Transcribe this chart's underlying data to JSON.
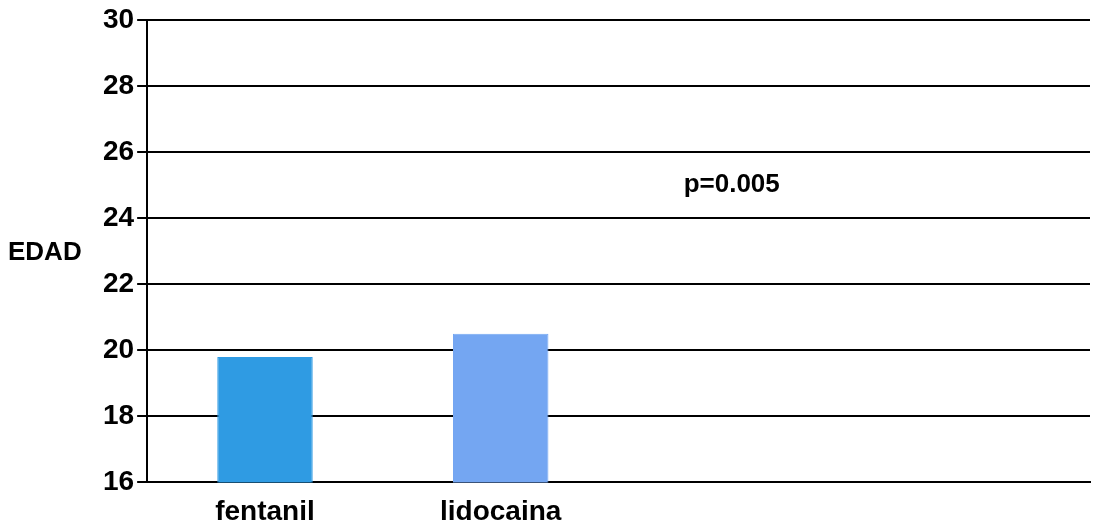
{
  "chart_data": {
    "type": "bar",
    "ylabel": "EDAD",
    "categories": [
      "fentanil",
      "lidocaina",
      null,
      null
    ],
    "series": [
      {
        "colors": [
          "#2f9be3",
          "#74a6f2",
          null,
          null
        ],
        "values": [
          19.8,
          20.5,
          null,
          null
        ]
      }
    ],
    "ylim": [
      16,
      30
    ],
    "yticks": [
      16,
      18,
      20,
      22,
      24,
      26,
      28,
      30
    ],
    "grid": "y",
    "legend": false,
    "annotations": [
      "p=0.005"
    ]
  }
}
